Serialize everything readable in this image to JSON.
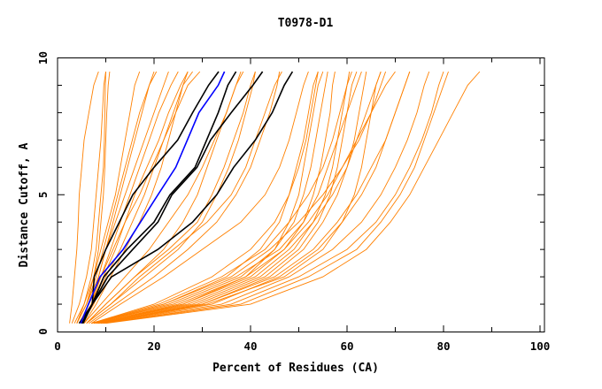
{
  "chart_data": {
    "type": "line",
    "title": "T0978-D1",
    "xlabel": "Percent of Residues (CA)",
    "ylabel": "Distance Cutoff, A",
    "xlim": [
      0,
      100
    ],
    "ylim": [
      0,
      10
    ],
    "x_ticks": [
      "0",
      "20",
      "40",
      "60",
      "80",
      "100"
    ],
    "y_ticks": [
      "0",
      "5",
      "10"
    ],
    "grid": false,
    "legend": "none",
    "colors": {
      "orange": "#ff8000",
      "black": "#000000",
      "blue": "#0000ff"
    },
    "y_cutoffs": [
      0.3,
      1,
      2,
      3,
      4,
      5,
      6,
      7,
      8,
      9,
      9.5
    ],
    "series": [
      {
        "name": "orange-1",
        "color": "orange",
        "x": [
          2.5,
          3,
          3.5,
          4,
          4.3,
          4.5,
          5,
          5.5,
          6.5,
          7.5,
          8.5
        ]
      },
      {
        "name": "orange-2",
        "color": "orange",
        "x": [
          3,
          4.5,
          6,
          7,
          7.5,
          8,
          8.5,
          9,
          9.3,
          9.6,
          10
        ]
      },
      {
        "name": "orange-3",
        "color": "orange",
        "x": [
          3.5,
          5.5,
          7,
          8,
          8.5,
          9,
          9.5,
          9.7,
          9.8,
          9.9,
          10
        ]
      },
      {
        "name": "orange-4",
        "color": "orange",
        "x": [
          4,
          6,
          7.5,
          8.5,
          9,
          9.5,
          9.8,
          10,
          10.2,
          10.5,
          10.8
        ]
      },
      {
        "name": "orange-5",
        "color": "orange",
        "x": [
          4,
          6,
          8,
          9.5,
          11,
          12.5,
          14,
          15.5,
          17,
          19,
          20
        ]
      },
      {
        "name": "orange-6",
        "color": "orange",
        "x": [
          4.5,
          6.5,
          9,
          11,
          13,
          15,
          17,
          19,
          21,
          23.5,
          25
        ]
      },
      {
        "name": "orange-7",
        "color": "orange",
        "x": [
          4,
          6,
          8.5,
          10,
          11.5,
          13,
          14.5,
          16,
          17.5,
          19,
          20.5
        ]
      },
      {
        "name": "orange-8",
        "color": "orange",
        "x": [
          5,
          7,
          9.5,
          12,
          14,
          16,
          18.5,
          21,
          23,
          25.5,
          27
        ]
      },
      {
        "name": "orange-9",
        "color": "orange",
        "x": [
          5,
          7.5,
          10,
          13,
          15.5,
          18,
          20,
          22,
          24,
          26,
          28
        ]
      },
      {
        "name": "orange-10",
        "color": "orange",
        "x": [
          4.5,
          7,
          9,
          11.5,
          14,
          17,
          19.5,
          22,
          24.5,
          27,
          29.5
        ]
      },
      {
        "name": "orange-11",
        "color": "orange",
        "x": [
          5.5,
          8,
          11,
          14,
          17,
          19.5,
          21.5,
          23,
          24.5,
          26,
          27
        ]
      },
      {
        "name": "orange-12",
        "color": "orange",
        "x": [
          5,
          7,
          8.5,
          10,
          12,
          14,
          16,
          18,
          20,
          22,
          23
        ]
      },
      {
        "name": "orange-13",
        "color": "orange",
        "x": [
          4,
          5.5,
          7.5,
          9,
          10.5,
          12,
          13,
          14,
          15,
          16,
          17
        ]
      },
      {
        "name": "orange-14",
        "color": "orange",
        "x": [
          6,
          10,
          16,
          22,
          26,
          29,
          31,
          33,
          35,
          37,
          38
        ]
      },
      {
        "name": "orange-15",
        "color": "orange",
        "x": [
          6,
          11,
          18,
          25,
          30,
          33,
          35.5,
          37.5,
          39,
          40.5,
          41
        ]
      },
      {
        "name": "orange-16",
        "color": "orange",
        "x": [
          5.5,
          9,
          14,
          19,
          23,
          27,
          30,
          32.5,
          35,
          37,
          38.5
        ]
      },
      {
        "name": "orange-17",
        "color": "orange",
        "x": [
          6.5,
          12,
          20,
          27,
          33,
          37,
          40,
          42,
          44,
          45.5,
          46
        ]
      },
      {
        "name": "orange-18",
        "color": "orange",
        "x": [
          6,
          11,
          17,
          24,
          31,
          36,
          39,
          41,
          43,
          45,
          46.5
        ]
      },
      {
        "name": "orange-19",
        "color": "orange",
        "x": [
          7,
          13,
          22,
          30,
          38,
          43,
          46,
          48,
          49.5,
          51,
          52
        ]
      },
      {
        "name": "orange-20",
        "color": "orange",
        "x": [
          6,
          10,
          16,
          23,
          29,
          32,
          34.5,
          36.5,
          38.5,
          40,
          41
        ]
      },
      {
        "name": "orange-21",
        "color": "orange",
        "x": [
          7,
          22,
          35,
          42,
          46,
          48,
          49.5,
          51,
          52,
          53,
          54
        ]
      },
      {
        "name": "orange-22",
        "color": "orange",
        "x": [
          7.5,
          24,
          38,
          45,
          49,
          51,
          52.5,
          53.5,
          54.5,
          55.5,
          56
        ]
      },
      {
        "name": "orange-23",
        "color": "orange",
        "x": [
          8,
          26,
          40,
          47,
          51,
          53,
          54.5,
          55.5,
          56.5,
          57,
          57.5
        ]
      },
      {
        "name": "orange-24",
        "color": "orange",
        "x": [
          7,
          20,
          32,
          40,
          45,
          48,
          50,
          51.5,
          52.5,
          53.5,
          54
        ]
      },
      {
        "name": "orange-25",
        "color": "orange",
        "x": [
          8,
          28,
          42,
          49,
          53,
          55.5,
          57,
          58,
          59,
          60,
          60.5
        ]
      },
      {
        "name": "orange-26",
        "color": "orange",
        "x": [
          8.5,
          30,
          44,
          51,
          55,
          58,
          60,
          61.5,
          62.5,
          63.5,
          64
        ]
      },
      {
        "name": "orange-27",
        "color": "orange",
        "x": [
          8,
          27,
          41,
          48,
          53,
          57,
          60,
          62,
          64,
          66,
          67
        ]
      },
      {
        "name": "orange-28",
        "color": "orange",
        "x": [
          9,
          32,
          46,
          54,
          59,
          63,
          66,
          68,
          70,
          72,
          73
        ]
      },
      {
        "name": "orange-29",
        "color": "orange",
        "x": [
          9,
          34,
          48,
          57,
          63,
          67,
          70,
          72.5,
          74.5,
          76,
          77
        ]
      },
      {
        "name": "orange-30",
        "color": "orange",
        "x": [
          9.5,
          36,
          50,
          60,
          66,
          70,
          73,
          75.5,
          77.5,
          79,
          80
        ]
      },
      {
        "name": "orange-31",
        "color": "orange",
        "x": [
          9,
          30,
          45,
          53,
          58,
          62,
          65,
          68,
          70,
          72,
          73
        ]
      },
      {
        "name": "orange-32",
        "color": "orange",
        "x": [
          8,
          25,
          39,
          47,
          52,
          56,
          59,
          62,
          65,
          68,
          70
        ]
      },
      {
        "name": "orange-33",
        "color": "orange",
        "x": [
          8.5,
          29,
          43,
          50,
          54,
          56.5,
          58,
          59,
          60,
          61,
          62
        ]
      },
      {
        "name": "orange-34",
        "color": "orange",
        "x": [
          7.5,
          23,
          37,
          46,
          51,
          54,
          56,
          58,
          60,
          62,
          63
        ]
      },
      {
        "name": "orange-35",
        "color": "orange",
        "x": [
          9.5,
          38,
          52,
          62,
          67,
          71,
          74,
          76,
          78,
          80,
          81
        ]
      },
      {
        "name": "orange-36",
        "color": "orange",
        "x": [
          10,
          40,
          55,
          64,
          69,
          73,
          76,
          79,
          82,
          85,
          87.5
        ]
      },
      {
        "name": "orange-37",
        "color": "orange",
        "x": [
          7,
          21,
          34,
          43,
          48,
          52,
          55,
          57,
          58.5,
          60,
          61
        ]
      },
      {
        "name": "orange-38",
        "color": "orange",
        "x": [
          8,
          26,
          39,
          45,
          48,
          50,
          51,
          52,
          53,
          54,
          55
        ]
      },
      {
        "name": "orange-39",
        "color": "orange",
        "x": [
          8.5,
          31,
          47,
          55,
          59,
          61.5,
          63,
          64,
          65,
          66,
          67
        ]
      },
      {
        "name": "orange-40",
        "color": "orange",
        "x": [
          7.5,
          22,
          36,
          44,
          50,
          55,
          59,
          62.5,
          65,
          67,
          68
        ]
      },
      {
        "name": "black-1",
        "color": "black",
        "x": [
          4.5,
          7.2,
          7.6,
          10,
          12.8,
          15.6,
          20,
          24.9,
          28,
          31.3,
          33.4
        ]
      },
      {
        "name": "black-2",
        "color": "black",
        "x": [
          5.1,
          7.2,
          9.6,
          14.4,
          20,
          23.3,
          28.5,
          30.9,
          33.3,
          35.3,
          37
        ]
      },
      {
        "name": "black-3",
        "color": "black",
        "x": [
          5.3,
          7.2,
          10.4,
          15.6,
          20.8,
          23.7,
          28.9,
          31.7,
          36,
          40.5,
          42.5
        ]
      },
      {
        "name": "black-4",
        "color": "black",
        "x": [
          5,
          7.2,
          11.2,
          20.8,
          28,
          33,
          36.5,
          41,
          44.5,
          47,
          48.7
        ]
      },
      {
        "name": "blue-1",
        "color": "blue",
        "x": [
          4.8,
          6.4,
          8.8,
          13.6,
          17.2,
          20.8,
          24.5,
          26.9,
          29.3,
          33.3,
          34.6
        ]
      }
    ]
  }
}
